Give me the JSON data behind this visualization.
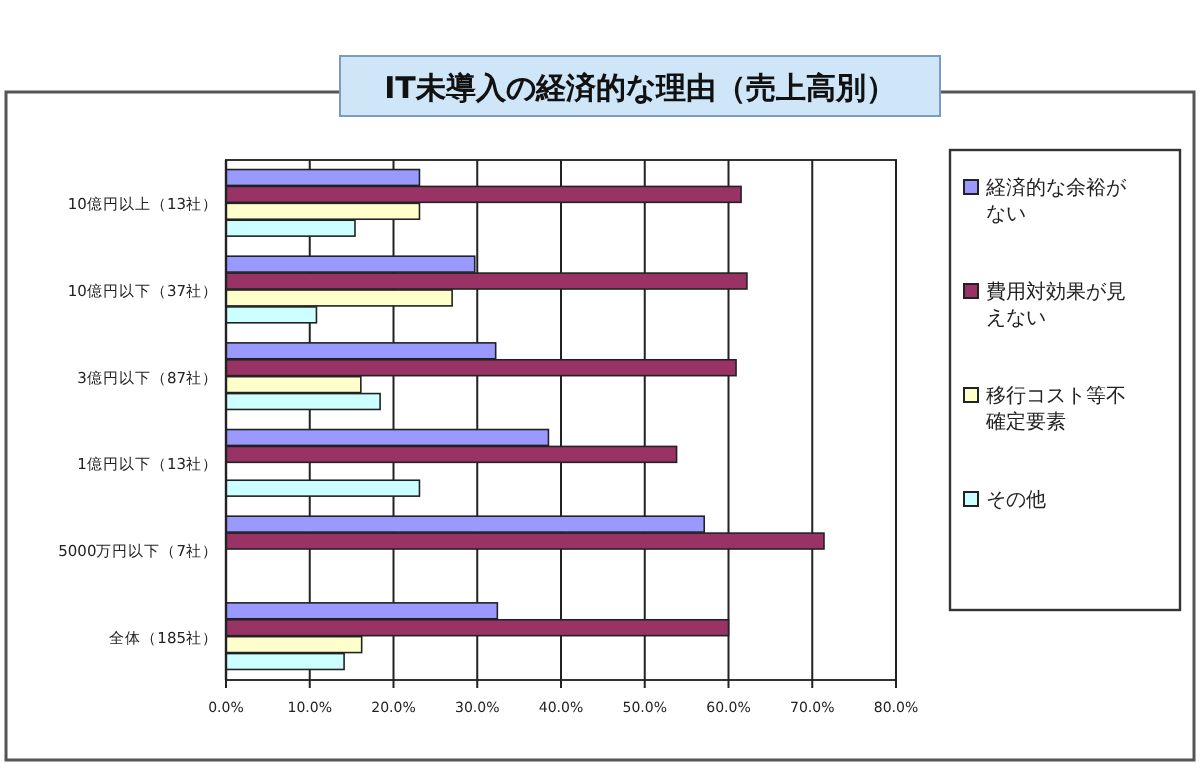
{
  "chart_data": {
    "type": "bar",
    "orientation": "horizontal",
    "title": "IT未導入の経済的な理由（売上高別）",
    "categories": [
      "10億円以上（13社）",
      "10億円以下（37社）",
      "3億円以下（87社）",
      "1億円以下（13社）",
      "5000万円以下（7社）",
      "全体（185社）"
    ],
    "series": [
      {
        "name": "経済的な余裕がない",
        "color": "#9999ff",
        "values": [
          23.1,
          29.7,
          32.2,
          38.5,
          57.1,
          32.4
        ]
      },
      {
        "name": "費用対効果が見えない",
        "color": "#993366",
        "values": [
          61.5,
          62.2,
          60.9,
          53.8,
          71.4,
          60.0
        ]
      },
      {
        "name": "移行コスト等不確定要素",
        "color": "#ffffcc",
        "values": [
          23.1,
          27.0,
          16.1,
          0,
          0,
          16.2
        ]
      },
      {
        "name": "その他",
        "color": "#ccffff",
        "values": [
          15.4,
          10.8,
          18.4,
          23.1,
          0,
          14.1
        ]
      }
    ],
    "xlim": [
      0,
      80
    ],
    "xticks": [
      {
        "value": 0,
        "label": "0.0%"
      },
      {
        "value": 10,
        "label": "10.0%"
      },
      {
        "value": 20,
        "label": "20.0%"
      },
      {
        "value": 30,
        "label": "30.0%"
      },
      {
        "value": 40,
        "label": "40.0%"
      },
      {
        "value": 50,
        "label": "50.0%"
      },
      {
        "value": 60,
        "label": "60.0%"
      },
      {
        "value": 70,
        "label": "70.0%"
      },
      {
        "value": 80,
        "label": "80.0%"
      }
    ],
    "grid": "x",
    "legend": "right"
  }
}
